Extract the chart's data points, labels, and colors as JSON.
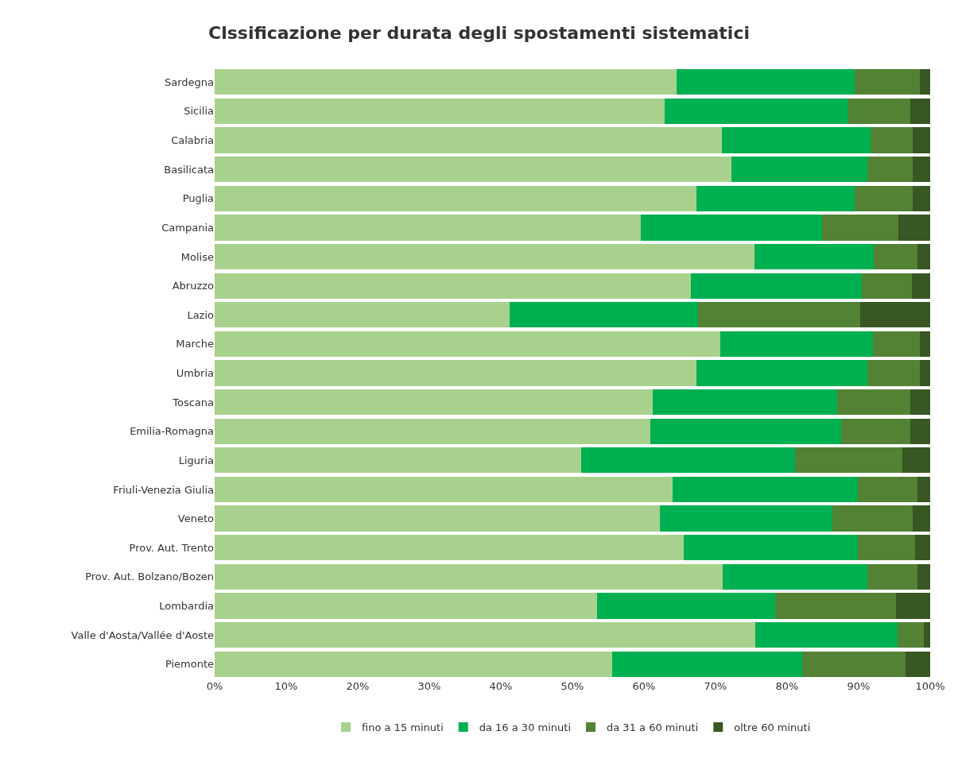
{
  "chart_data": {
    "type": "bar",
    "orientation": "horizontal",
    "stacked": true,
    "title": "Clssificazione per durata degli spostamenti sistematici",
    "categories": [
      "Sardegna",
      "Sicilia",
      "Calabria",
      "Basilicata",
      "Puglia",
      "Campania",
      "Molise",
      "Abruzzo",
      "Lazio",
      "Marche",
      "Umbria",
      "Toscana",
      "Emilia-Romagna",
      "Liguria",
      "Friuli-Venezia Giulia",
      "Veneto",
      "Prov. Aut. Trento",
      "Prov. Aut. Bolzano/Bozen",
      "Lombardia",
      "Valle d'Aosta/Vallée d'Aoste",
      "Piemonte"
    ],
    "series": [
      {
        "name": "fino a 15 minuti",
        "color": "#a9d18e",
        "values": [
          64.6,
          62.9,
          70.9,
          72.2,
          67.3,
          59.6,
          75.4,
          66.6,
          41.2,
          70.7,
          67.3,
          61.2,
          60.9,
          51.2,
          64.0,
          62.2,
          65.6,
          71.0,
          53.4,
          75.5,
          55.6
        ]
      },
      {
        "name": "da 16 a 30 minuti",
        "color": "#00b050",
        "values": [
          24.8,
          25.6,
          20.8,
          19.0,
          22.1,
          25.3,
          16.7,
          23.8,
          26.4,
          21.3,
          23.9,
          25.8,
          26.7,
          29.9,
          25.9,
          24.1,
          24.3,
          20.2,
          24.9,
          19.9,
          26.5
        ]
      },
      {
        "name": "da 31 a 60 minuti",
        "color": "#548235",
        "values": [
          9.1,
          8.7,
          5.9,
          6.4,
          8.2,
          10.6,
          6.1,
          7.0,
          22.6,
          6.5,
          7.3,
          10.2,
          9.6,
          15.0,
          8.3,
          11.3,
          8.0,
          7.0,
          16.9,
          3.7,
          14.4
        ]
      },
      {
        "name": "oltre 60 minuti",
        "color": "#385723",
        "values": [
          1.5,
          2.8,
          2.4,
          2.4,
          2.4,
          4.5,
          1.8,
          2.6,
          9.8,
          1.5,
          1.5,
          2.8,
          2.8,
          3.9,
          1.8,
          2.4,
          2.1,
          1.8,
          4.8,
          0.9,
          3.5
        ]
      }
    ],
    "xlim": [
      0,
      100
    ],
    "xticks": [
      {
        "value": 0,
        "label": "0%"
      },
      {
        "value": 10,
        "label": "10%"
      },
      {
        "value": 20,
        "label": "20%"
      },
      {
        "value": 30,
        "label": "30%"
      },
      {
        "value": 40,
        "label": "40%"
      },
      {
        "value": 50,
        "label": "50%"
      },
      {
        "value": 60,
        "label": "60%"
      },
      {
        "value": 70,
        "label": "70%"
      },
      {
        "value": 80,
        "label": "80%"
      },
      {
        "value": 90,
        "label": "90%"
      },
      {
        "value": 100,
        "label": "100%"
      }
    ],
    "legend": "bottom"
  }
}
